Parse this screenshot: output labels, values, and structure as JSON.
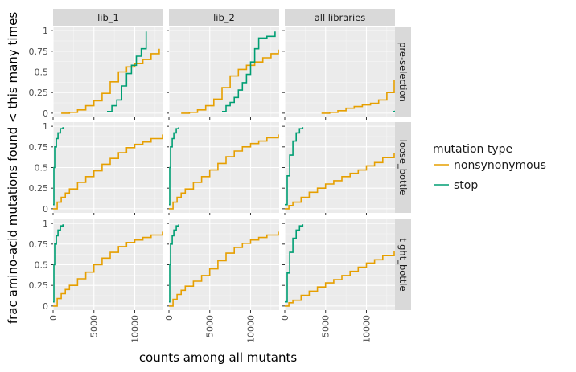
{
  "chart_data": {
    "type": "line",
    "step": true,
    "xlabel": "counts among all mutants",
    "ylabel": "frac amino-acid mutations found < this many times",
    "xlim": [
      0,
      13500
    ],
    "ylim": [
      0,
      1.05
    ],
    "x_ticks": [
      0,
      5000,
      10000
    ],
    "x_tick_labels": [
      "0",
      "5000",
      "10000"
    ],
    "y_ticks": [
      0,
      0.25,
      0.5,
      0.75,
      1
    ],
    "y_tick_labels": [
      "0",
      "0.25",
      "0.5",
      "0.75",
      "1"
    ],
    "col_facets": [
      "lib_1",
      "lib_2",
      "all libraries"
    ],
    "row_facets": [
      "pre-selection",
      "loose_bottle",
      "tight_bottle"
    ],
    "legend": {
      "title": "mutation type",
      "position": "right",
      "entries": [
        {
          "label": "nonsynonymous",
          "color": "#E69F00"
        },
        {
          "label": "stop",
          "color": "#009E73"
        }
      ]
    },
    "panels": [
      {
        "row": "pre-selection",
        "col": "lib_1",
        "series": [
          {
            "name": "nonsynonymous",
            "x": [
              1000,
              2000,
              3000,
              4000,
              5000,
              6000,
              7000,
              8000,
              9000,
              10000,
              11000,
              12000,
              13000
            ],
            "y": [
              0,
              0.01,
              0.04,
              0.09,
              0.15,
              0.24,
              0.38,
              0.5,
              0.56,
              0.6,
              0.65,
              0.72,
              0.78
            ]
          },
          {
            "name": "stop",
            "x": [
              6600,
              7200,
              7800,
              8400,
              9000,
              9600,
              10200,
              10800,
              11400
            ],
            "y": [
              0.02,
              0.09,
              0.16,
              0.33,
              0.48,
              0.58,
              0.69,
              0.78,
              0.99
            ]
          }
        ]
      },
      {
        "row": "pre-selection",
        "col": "lib_2",
        "series": [
          {
            "name": "nonsynonymous",
            "x": [
              1500,
              2500,
              3500,
              4500,
              5500,
              6500,
              7500,
              8500,
              9500,
              10500,
              11500,
              12500,
              13400
            ],
            "y": [
              0,
              0.01,
              0.04,
              0.09,
              0.17,
              0.31,
              0.45,
              0.53,
              0.58,
              0.62,
              0.67,
              0.72,
              0.77
            ]
          },
          {
            "name": "stop",
            "x": [
              6500,
              7000,
              7500,
              8000,
              8500,
              9000,
              9500,
              10000,
              10500,
              11000,
              12000,
              13000
            ],
            "y": [
              0.02,
              0.09,
              0.13,
              0.19,
              0.28,
              0.37,
              0.47,
              0.62,
              0.78,
              0.91,
              0.93,
              0.99
            ]
          }
        ]
      },
      {
        "row": "pre-selection",
        "col": "all libraries",
        "series": [
          {
            "name": "nonsynonymous",
            "x": [
              4500,
              5500,
              6500,
              7500,
              8500,
              9500,
              10500,
              11500,
              12500,
              13400
            ],
            "y": [
              0,
              0.01,
              0.03,
              0.06,
              0.08,
              0.1,
              0.12,
              0.16,
              0.25,
              0.4
            ]
          },
          {
            "name": "stop",
            "x": [
              13200,
              13500
            ],
            "y": [
              0.02,
              0.03
            ]
          }
        ]
      },
      {
        "row": "loose_bottle",
        "col": "lib_1",
        "series": [
          {
            "name": "nonsynonymous",
            "x": [
              0,
              500,
              1000,
              1500,
              2000,
              3000,
              4000,
              5000,
              6000,
              7000,
              8000,
              9000,
              10000,
              11000,
              12000,
              13400
            ],
            "y": [
              0,
              0.08,
              0.14,
              0.19,
              0.24,
              0.32,
              0.39,
              0.46,
              0.54,
              0.61,
              0.68,
              0.74,
              0.78,
              0.81,
              0.85,
              0.9
            ]
          },
          {
            "name": "stop",
            "x": [
              0,
              100,
              200,
              400,
              600,
              900,
              1200
            ],
            "y": [
              0.05,
              0.5,
              0.75,
              0.85,
              0.92,
              0.97,
              0.99
            ]
          }
        ]
      },
      {
        "row": "loose_bottle",
        "col": "lib_2",
        "series": [
          {
            "name": "nonsynonymous",
            "x": [
              0,
              500,
              1000,
              1500,
              2000,
              3000,
              4000,
              5000,
              6000,
              7000,
              8000,
              9000,
              10000,
              11000,
              12000,
              13400
            ],
            "y": [
              0,
              0.08,
              0.14,
              0.19,
              0.24,
              0.32,
              0.39,
              0.47,
              0.55,
              0.63,
              0.7,
              0.75,
              0.79,
              0.82,
              0.86,
              0.9
            ]
          },
          {
            "name": "stop",
            "x": [
              0,
              100,
              200,
              400,
              600,
              900,
              1200
            ],
            "y": [
              0.05,
              0.5,
              0.75,
              0.85,
              0.92,
              0.97,
              0.99
            ]
          }
        ]
      },
      {
        "row": "loose_bottle",
        "col": "all libraries",
        "series": [
          {
            "name": "nonsynonymous",
            "x": [
              0,
              500,
              1000,
              2000,
              3000,
              4000,
              5000,
              6000,
              7000,
              8000,
              9000,
              10000,
              11000,
              12000,
              13400
            ],
            "y": [
              0,
              0.04,
              0.08,
              0.14,
              0.2,
              0.25,
              0.3,
              0.34,
              0.39,
              0.43,
              0.47,
              0.52,
              0.56,
              0.62,
              0.67
            ]
          },
          {
            "name": "stop",
            "x": [
              0,
              300,
              600,
              1000,
              1400,
              1800,
              2200
            ],
            "y": [
              0.05,
              0.4,
              0.65,
              0.82,
              0.92,
              0.97,
              0.99
            ]
          }
        ]
      },
      {
        "row": "tight_bottle",
        "col": "lib_1",
        "series": [
          {
            "name": "nonsynonymous",
            "x": [
              0,
              500,
              1000,
              1500,
              2000,
              3000,
              4000,
              5000,
              6000,
              7000,
              8000,
              9000,
              10000,
              11000,
              12000,
              13400
            ],
            "y": [
              0,
              0.09,
              0.15,
              0.2,
              0.25,
              0.33,
              0.41,
              0.5,
              0.58,
              0.65,
              0.72,
              0.77,
              0.8,
              0.83,
              0.86,
              0.9
            ]
          },
          {
            "name": "stop",
            "x": [
              0,
              100,
              200,
              400,
              600,
              900,
              1200
            ],
            "y": [
              0.05,
              0.5,
              0.75,
              0.85,
              0.92,
              0.97,
              0.99
            ]
          }
        ]
      },
      {
        "row": "tight_bottle",
        "col": "lib_2",
        "series": [
          {
            "name": "nonsynonymous",
            "x": [
              0,
              500,
              1000,
              1500,
              2000,
              3000,
              4000,
              5000,
              6000,
              7000,
              8000,
              9000,
              10000,
              11000,
              12000,
              13400
            ],
            "y": [
              0,
              0.08,
              0.14,
              0.19,
              0.24,
              0.3,
              0.37,
              0.45,
              0.55,
              0.64,
              0.71,
              0.76,
              0.8,
              0.83,
              0.86,
              0.9
            ]
          },
          {
            "name": "stop",
            "x": [
              0,
              100,
              200,
              400,
              600,
              900,
              1200
            ],
            "y": [
              0.05,
              0.5,
              0.75,
              0.85,
              0.92,
              0.97,
              0.99
            ]
          }
        ]
      },
      {
        "row": "tight_bottle",
        "col": "all libraries",
        "series": [
          {
            "name": "nonsynonymous",
            "x": [
              0,
              500,
              1000,
              2000,
              3000,
              4000,
              5000,
              6000,
              7000,
              8000,
              9000,
              10000,
              11000,
              12000,
              13400
            ],
            "y": [
              0,
              0.04,
              0.07,
              0.13,
              0.18,
              0.23,
              0.28,
              0.32,
              0.37,
              0.42,
              0.47,
              0.52,
              0.56,
              0.61,
              0.67
            ]
          },
          {
            "name": "stop",
            "x": [
              0,
              300,
              600,
              1000,
              1400,
              1800,
              2200
            ],
            "y": [
              0.05,
              0.4,
              0.65,
              0.82,
              0.92,
              0.97,
              0.99
            ]
          }
        ]
      }
    ]
  }
}
